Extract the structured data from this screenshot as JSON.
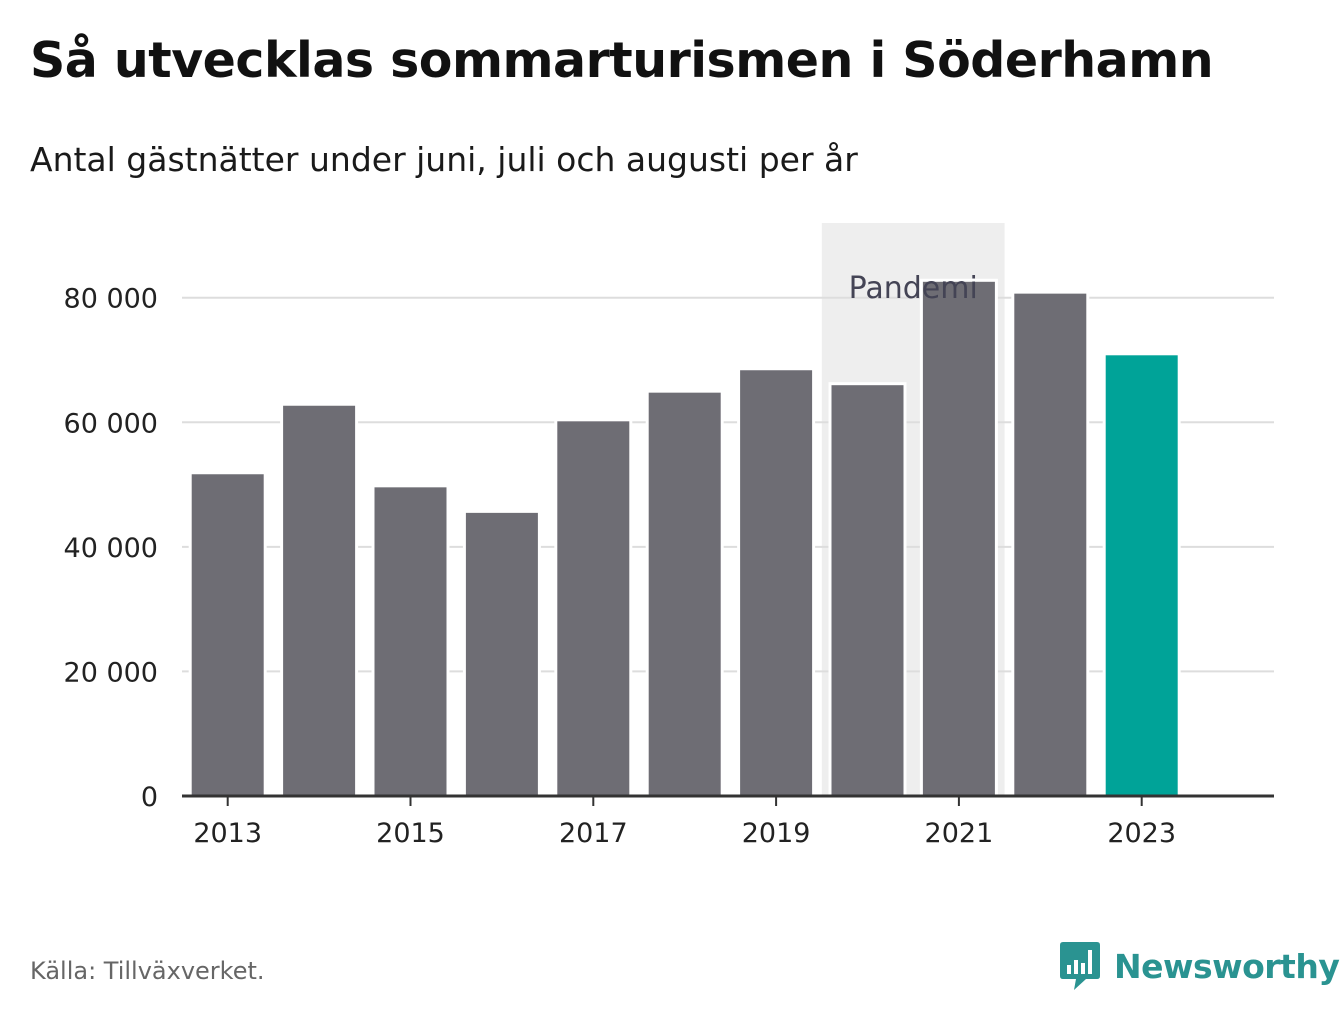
{
  "source": "Källa: Tillväxverket.",
  "brand": {
    "name": "Newsworthy",
    "color": "#2a9391",
    "icon": "bar-chart-speech-bubble-icon"
  },
  "colors": {
    "bar": "#6e6d74",
    "highlight": "#00a398",
    "band": "#eeeeee",
    "grid": "#dddddd",
    "axis": "#333333"
  },
  "chart_data": {
    "type": "bar",
    "title": "Så utvecklas sommarturismen i Söderhamn",
    "subtitle": "Antal gästnätter under juni, juli och augusti per år",
    "xlabel": "",
    "ylabel": "",
    "categories": [
      "2013",
      "2014",
      "2015",
      "2016",
      "2017",
      "2018",
      "2019",
      "2020",
      "2021",
      "2022",
      "2023"
    ],
    "x_tick_labels": [
      "2013",
      "2015",
      "2017",
      "2019",
      "2021",
      "2023"
    ],
    "values": [
      51900,
      62900,
      49800,
      45700,
      60400,
      65000,
      68600,
      66200,
      82800,
      80900,
      71000
    ],
    "highlighted_category": "2023",
    "ylim": [
      0,
      92000
    ],
    "y_ticks": [
      0,
      20000,
      40000,
      60000,
      80000
    ],
    "y_tick_labels": [
      "0",
      "20 000",
      "40 000",
      "60 000",
      "80 000"
    ],
    "grid": true,
    "annotations": [
      {
        "text": "Pandemi",
        "type": "shaded-band",
        "from": "2020",
        "to": "2021"
      }
    ]
  }
}
